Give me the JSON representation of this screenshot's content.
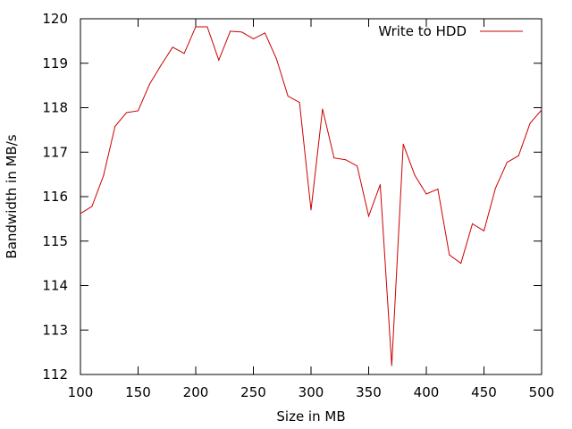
{
  "chart_data": {
    "type": "line",
    "title": "",
    "xlabel": "Size in MB",
    "ylabel": "Bandwidth in MB/s",
    "xlim": [
      100,
      500
    ],
    "ylim": [
      112,
      120
    ],
    "xticks": [
      "100",
      "150",
      "200",
      "250",
      "300",
      "350",
      "400",
      "450",
      "500"
    ],
    "yticks": [
      "112",
      "113",
      "114",
      "115",
      "116",
      "117",
      "118",
      "119",
      "120"
    ],
    "grid": false,
    "legend_position": "top-right",
    "series": [
      {
        "name": "Write to HDD",
        "color": "#cc0000",
        "x": [
          100,
          110,
          120,
          130,
          140,
          150,
          160,
          170,
          180,
          190,
          200,
          210,
          220,
          230,
          240,
          250,
          260,
          270,
          280,
          290,
          300,
          310,
          320,
          330,
          340,
          350,
          360,
          370,
          380,
          390,
          400,
          410,
          420,
          430,
          440,
          450,
          460,
          470,
          480,
          490,
          500
        ],
        "y": [
          115.62,
          115.78,
          116.47,
          117.58,
          117.89,
          117.93,
          118.53,
          118.96,
          119.36,
          119.22,
          119.82,
          119.82,
          119.07,
          119.72,
          119.7,
          119.55,
          119.68,
          119.1,
          118.26,
          118.12,
          115.7,
          117.97,
          116.87,
          116.83,
          116.69,
          115.56,
          116.27,
          112.2,
          117.18,
          116.48,
          116.06,
          116.17,
          114.69,
          114.5,
          115.39,
          115.23,
          116.19,
          116.77,
          116.92,
          117.65,
          117.95
        ]
      }
    ]
  }
}
